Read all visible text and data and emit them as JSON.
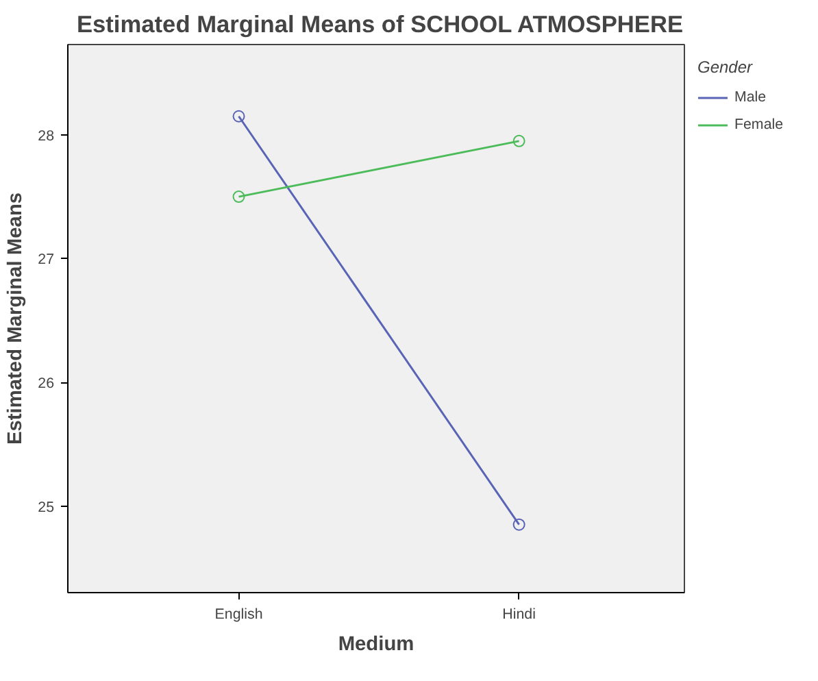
{
  "chart_data": {
    "type": "line",
    "title": "Estimated Marginal Means of SCHOOL ATMOSPHERE",
    "xlabel": "Medium",
    "ylabel": "Estimated Marginal Means",
    "legend_title": "Gender",
    "categories": [
      "English",
      "Hindi"
    ],
    "series": [
      {
        "name": "Male",
        "color": "#5a64b4",
        "values": [
          28.15,
          24.85
        ]
      },
      {
        "name": "Female",
        "color": "#4cbb5a",
        "values": [
          27.5,
          27.95
        ]
      }
    ],
    "ylim": [
      24.3,
      28.73
    ],
    "yticks": [
      25,
      26,
      27,
      28
    ],
    "grid": false,
    "legend": "right",
    "marker": "circle",
    "line_style": "solid"
  }
}
